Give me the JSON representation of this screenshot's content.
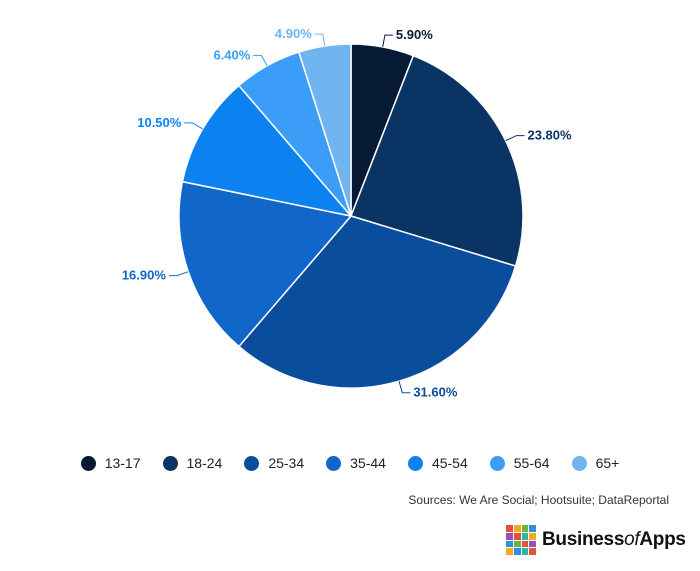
{
  "chart_data": {
    "type": "pie",
    "categories": [
      "13-17",
      "18-24",
      "25-34",
      "35-44",
      "45-54",
      "55-64",
      "65+"
    ],
    "values": [
      5.9,
      23.8,
      31.6,
      16.9,
      10.5,
      6.4,
      4.9
    ],
    "value_labels": [
      "5.90%",
      "23.80%",
      "31.60%",
      "16.90%",
      "10.50%",
      "6.40%",
      "4.90%"
    ],
    "colors": [
      "#061a35",
      "#0a3464",
      "#0a4d9c",
      "#1166c9",
      "#0c82f0",
      "#3b9df8",
      "#70b4f0"
    ],
    "label_colors": [
      "#061a35",
      "#0a3464",
      "#0a4d9c",
      "#1166c9",
      "#0c82f0",
      "#3b9df8",
      "#70b4f0"
    ],
    "start": "12 o'clock, clockwise",
    "legend": "bottom-center"
  },
  "source_text": "Sources: We Are Social; Hootsuite; DataReportal",
  "logo": {
    "text_main": "Business",
    "text_of": "of",
    "text_end": "Apps",
    "grid_colors": [
      "#e0533a",
      "#f6a821",
      "#6db33f",
      "#2f8fd8",
      "#9b4fb3",
      "#e0533a",
      "#2fb5a6",
      "#f6a821",
      "#2f8fd8",
      "#6db33f",
      "#e0533a",
      "#9b4fb3",
      "#f6a821",
      "#2f8fd8",
      "#2fb5a6",
      "#e0533a"
    ]
  }
}
